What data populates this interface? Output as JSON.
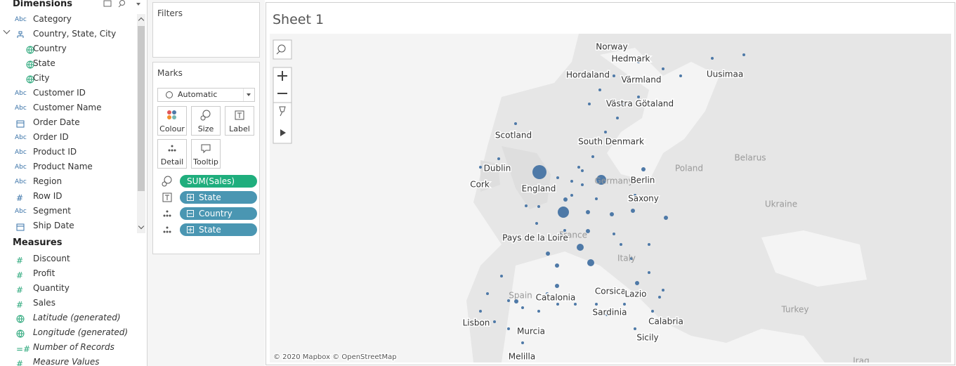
{
  "data_pane": {
    "dimensions_title": "Dimensions",
    "dimensions": [
      {
        "label": "Category",
        "icon": "Abc"
      },
      {
        "label": "Country, State, City",
        "icon": "hierarchy"
      },
      {
        "label": "Country",
        "icon": "globe",
        "indent": true
      },
      {
        "label": "State",
        "icon": "globe",
        "indent": true
      },
      {
        "label": "City",
        "icon": "globe",
        "indent": true
      },
      {
        "label": "Customer ID",
        "icon": "Abc"
      },
      {
        "label": "Customer Name",
        "icon": "Abc"
      },
      {
        "label": "Order Date",
        "icon": "calendar"
      },
      {
        "label": "Order ID",
        "icon": "Abc"
      },
      {
        "label": "Product ID",
        "icon": "Abc"
      },
      {
        "label": "Product Name",
        "icon": "Abc"
      },
      {
        "label": "Region",
        "icon": "Abc"
      },
      {
        "label": "Row ID",
        "icon": "#"
      },
      {
        "label": "Segment",
        "icon": "Abc"
      },
      {
        "label": "Ship Date",
        "icon": "calendar"
      }
    ],
    "measures_title": "Measures",
    "measures": [
      {
        "label": "Discount",
        "icon": "#"
      },
      {
        "label": "Profit",
        "icon": "#"
      },
      {
        "label": "Quantity",
        "icon": "#"
      },
      {
        "label": "Sales",
        "icon": "#"
      },
      {
        "label": "Latitude (generated)",
        "icon": "globe",
        "italic": true
      },
      {
        "label": "Longitude (generated)",
        "icon": "globe",
        "italic": true
      },
      {
        "label": "Number of Records",
        "icon": "=#",
        "italic": true
      },
      {
        "label": "Measure Values",
        "icon": "#",
        "italic": true
      }
    ]
  },
  "filters": {
    "title": "Filters"
  },
  "marks": {
    "title": "Marks",
    "mark_type": "Automatic",
    "buttons": [
      {
        "label": "Colour",
        "icon": "colour"
      },
      {
        "label": "Size",
        "icon": "size"
      },
      {
        "label": "Label",
        "icon": "label"
      },
      {
        "label": "Detail",
        "icon": "detail"
      },
      {
        "label": "Tooltip",
        "icon": "tooltip"
      }
    ],
    "pills": [
      {
        "label": "SUM(Sales)",
        "color": "#1fae7d",
        "icon": "size",
        "expand": false
      },
      {
        "label": "State",
        "color": "#4a96b2",
        "icon": "label",
        "expand": "plus"
      },
      {
        "label": "Country",
        "color": "#4a96b2",
        "icon": "detail",
        "expand": "minus"
      },
      {
        "label": "State",
        "color": "#4a96b2",
        "icon": "detail",
        "expand": "plus"
      }
    ]
  },
  "sheet": {
    "title": "Sheet 1",
    "country_labels": [
      "Germany",
      "France",
      "Italy",
      "Spain",
      "Poland",
      "Belarus",
      "Ukraine",
      "Turkey",
      "Iraq"
    ],
    "map_labels": [
      "Norway",
      "Hedmark",
      "Hordaland",
      "Värmland",
      "Uusimaa",
      "Västra Götaland",
      "Scotland",
      "South Denmark",
      "Dublin",
      "Cork",
      "England",
      "Berlin",
      "Saxony",
      "Pays de la Loire",
      "Catalonia",
      "Corsica",
      "Lazio",
      "Sardinia",
      "Calabria",
      "Lisbon",
      "Murcia",
      "Sicily",
      "Melilla"
    ],
    "attribution": "© 2020 Mapbox © OpenStreetMap"
  }
}
